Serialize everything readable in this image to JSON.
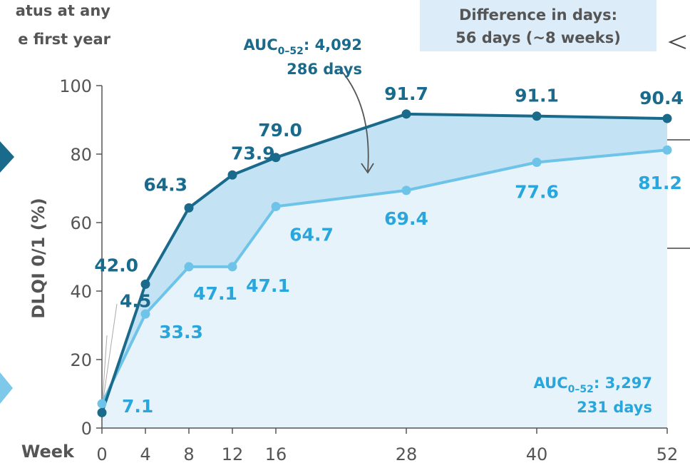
{
  "header": {
    "title_line1": "atus at any",
    "title_line2": "e first year"
  },
  "callout": {
    "line1": "Difference in days:",
    "line2": "56 days (~8 weeks)"
  },
  "auc_top": {
    "prefix": "AUC",
    "sub": "0–52",
    "value": ": 4,092",
    "days": "286 days"
  },
  "auc_bottom": {
    "prefix": "AUC",
    "sub": "0–52",
    "value": ": 3,297",
    "days": "231 days"
  },
  "colors": {
    "dark": "#1a6a8c",
    "light": "#6ec3e8",
    "light_label": "#29a6dc",
    "fill_between": "#c3e3f5",
    "fill_under": "#e6f3fb",
    "callout_bg": "#dcecf8",
    "axis": "#555555",
    "arrow_left": "#1a6a8c",
    "arrow_left2": "#7ec8ea"
  },
  "chart_data": {
    "type": "line",
    "x": [
      0,
      4,
      8,
      12,
      16,
      28,
      40,
      52
    ],
    "x_tick_labels": [
      "0",
      "4",
      "8",
      "12",
      "16",
      "28",
      "40",
      "52"
    ],
    "xlabel": "Week",
    "ylabel": "DLQI 0/1 (%)",
    "ylim": [
      0,
      100
    ],
    "y_ticks": [
      0,
      20,
      40,
      60,
      80,
      100
    ],
    "series": [
      {
        "values": [
          4.5,
          42.0,
          64.3,
          73.9,
          79.0,
          91.7,
          91.1,
          90.4
        ],
        "labels": [
          "4.5",
          "42.0",
          "64.3",
          "73.9",
          "79.0",
          "91.7",
          "91.1",
          "90.4"
        ]
      },
      {
        "values": [
          7.1,
          33.3,
          47.1,
          47.1,
          64.7,
          69.4,
          77.6,
          81.2
        ],
        "labels": [
          "7.1",
          "33.3",
          "47.1",
          "47.1",
          "64.7",
          "69.4",
          "77.6",
          "81.2"
        ]
      }
    ]
  }
}
